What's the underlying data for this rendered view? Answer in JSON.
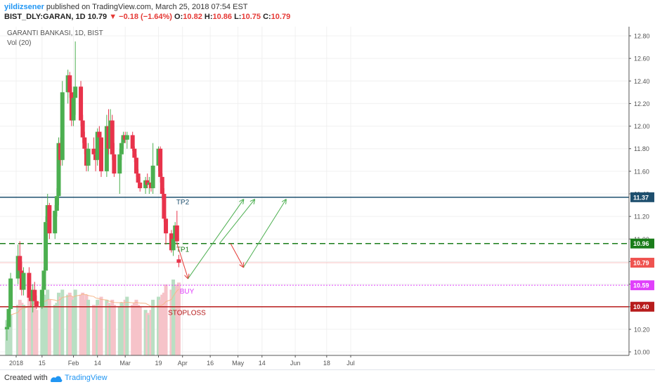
{
  "header": {
    "author": "yildizsener",
    "published": " published on TradingView.com, March 25, 2018 07:54 EST",
    "symbol": "BIST_DLY:GARAN, 1D",
    "last": "10.79",
    "change": "−0.18 (−1.64%)",
    "o_label": "O:",
    "o": "10.82",
    "h_label": "H:",
    "h": "10.86",
    "l_label": "L:",
    "l": "10.75",
    "c_label": "C:",
    "c": "10.79"
  },
  "legend": {
    "title": "GARANTI BANKASI, 1D, BIST",
    "volume": "Vol (20)"
  },
  "footer": {
    "created_with": "Created with",
    "brand": "TradingView"
  },
  "colors": {
    "up": "#4caf50",
    "down": "#e8334b",
    "vol_up": "#b9dfc3",
    "vol_down": "#f6c3c9",
    "grid": "#f0f0f0",
    "axis_text": "#555555"
  },
  "chart_data": {
    "type": "candlestick",
    "y_axis": {
      "min": 10.0,
      "max": 12.8,
      "ticks": [
        "10.00",
        "10.20",
        "10.40",
        "10.60",
        "10.80",
        "11.00",
        "11.20",
        "11.40",
        "11.60",
        "11.80",
        "12.00",
        "12.20",
        "12.40",
        "12.60",
        "12.80"
      ]
    },
    "x_ticks": [
      {
        "label": "2018",
        "date": "2018-01-01"
      },
      {
        "label": "15",
        "date": "2018-01-15"
      },
      {
        "label": "Feb",
        "date": "2018-02-01"
      },
      {
        "label": "14",
        "date": "2018-02-14"
      },
      {
        "label": "Mar",
        "date": "2018-03-01"
      },
      {
        "label": "19",
        "date": "2018-03-19"
      },
      {
        "label": "Apr",
        "date": "2018-04-01"
      },
      {
        "label": "16",
        "date": "2018-04-16"
      },
      {
        "label": "May",
        "date": "2018-05-01"
      },
      {
        "label": "14",
        "date": "2018-05-14"
      },
      {
        "label": "Jun",
        "date": "2018-06-01"
      },
      {
        "label": "18",
        "date": "2018-06-18"
      },
      {
        "label": "Jul",
        "date": "2018-07-01"
      }
    ],
    "candles": [
      {
        "d": "2017-12-27",
        "o": 10.2,
        "h": 10.25,
        "l": 10.1,
        "c": 10.22,
        "v": 0.35
      },
      {
        "d": "2017-12-28",
        "o": 10.22,
        "h": 10.4,
        "l": 10.2,
        "c": 10.38,
        "v": 0.45
      },
      {
        "d": "2017-12-29",
        "o": 10.38,
        "h": 10.7,
        "l": 10.35,
        "c": 10.65,
        "v": 0.4
      },
      {
        "d": "2018-01-02",
        "o": 10.65,
        "h": 10.95,
        "l": 10.6,
        "c": 10.85,
        "v": 0.5
      },
      {
        "d": "2018-01-03",
        "o": 10.85,
        "h": 10.98,
        "l": 10.7,
        "c": 10.72,
        "v": 0.55
      },
      {
        "d": "2018-01-04",
        "o": 10.72,
        "h": 10.8,
        "l": 10.5,
        "c": 10.55,
        "v": 0.52
      },
      {
        "d": "2018-01-05",
        "o": 10.55,
        "h": 10.75,
        "l": 10.5,
        "c": 10.7,
        "v": 0.5
      },
      {
        "d": "2018-01-08",
        "o": 10.7,
        "h": 10.75,
        "l": 10.45,
        "c": 10.48,
        "v": 0.58
      },
      {
        "d": "2018-01-09",
        "o": 10.48,
        "h": 10.55,
        "l": 10.4,
        "c": 10.45,
        "v": 0.6
      },
      {
        "d": "2018-01-10",
        "o": 10.45,
        "h": 10.6,
        "l": 10.35,
        "c": 10.55,
        "v": 0.55
      },
      {
        "d": "2018-01-11",
        "o": 10.55,
        "h": 10.62,
        "l": 10.42,
        "c": 10.45,
        "v": 0.5
      },
      {
        "d": "2018-01-12",
        "o": 10.45,
        "h": 10.5,
        "l": 10.38,
        "c": 10.4,
        "v": 0.45
      },
      {
        "d": "2018-01-15",
        "o": 10.4,
        "h": 10.58,
        "l": 10.38,
        "c": 10.55,
        "v": 0.52
      },
      {
        "d": "2018-01-16",
        "o": 10.55,
        "h": 10.75,
        "l": 10.5,
        "c": 10.72,
        "v": 0.55
      },
      {
        "d": "2018-01-17",
        "o": 10.72,
        "h": 11.2,
        "l": 10.7,
        "c": 11.15,
        "v": 0.6
      },
      {
        "d": "2018-01-18",
        "o": 11.15,
        "h": 11.4,
        "l": 11.05,
        "c": 11.3,
        "v": 0.65
      },
      {
        "d": "2018-01-19",
        "o": 11.3,
        "h": 11.32,
        "l": 11.0,
        "c": 11.05,
        "v": 0.55
      },
      {
        "d": "2018-01-22",
        "o": 11.05,
        "h": 11.3,
        "l": 11.0,
        "c": 11.25,
        "v": 0.5
      },
      {
        "d": "2018-01-23",
        "o": 11.25,
        "h": 11.45,
        "l": 11.2,
        "c": 11.38,
        "v": 0.52
      },
      {
        "d": "2018-01-24",
        "o": 11.38,
        "h": 11.9,
        "l": 11.3,
        "c": 11.85,
        "v": 0.62
      },
      {
        "d": "2018-01-25",
        "o": 11.85,
        "h": 11.9,
        "l": 11.65,
        "c": 11.7,
        "v": 0.58
      },
      {
        "d": "2018-01-26",
        "o": 11.7,
        "h": 12.4,
        "l": 11.65,
        "c": 12.3,
        "v": 0.65
      },
      {
        "d": "2018-01-29",
        "o": 12.3,
        "h": 12.5,
        "l": 12.2,
        "c": 12.45,
        "v": 0.6
      },
      {
        "d": "2018-01-30",
        "o": 12.45,
        "h": 12.48,
        "l": 12.25,
        "c": 12.3,
        "v": 0.62
      },
      {
        "d": "2018-01-31",
        "o": 12.3,
        "h": 12.35,
        "l": 12.0,
        "c": 12.05,
        "v": 0.58
      },
      {
        "d": "2018-02-01",
        "o": 12.05,
        "h": 12.3,
        "l": 12.0,
        "c": 12.25,
        "v": 0.55
      },
      {
        "d": "2018-02-02",
        "o": 12.25,
        "h": 12.75,
        "l": 12.1,
        "c": 12.35,
        "v": 0.65
      },
      {
        "d": "2018-02-05",
        "o": 12.35,
        "h": 12.4,
        "l": 12.0,
        "c": 12.05,
        "v": 0.6
      },
      {
        "d": "2018-02-06",
        "o": 12.05,
        "h": 12.1,
        "l": 11.85,
        "c": 11.9,
        "v": 0.62
      },
      {
        "d": "2018-02-07",
        "o": 11.9,
        "h": 11.95,
        "l": 11.75,
        "c": 11.8,
        "v": 0.55
      },
      {
        "d": "2018-02-08",
        "o": 11.8,
        "h": 11.85,
        "l": 11.6,
        "c": 11.65,
        "v": 0.6
      },
      {
        "d": "2018-02-09",
        "o": 11.65,
        "h": 11.85,
        "l": 11.6,
        "c": 11.8,
        "v": 0.55
      },
      {
        "d": "2018-02-12",
        "o": 11.8,
        "h": 11.9,
        "l": 11.7,
        "c": 11.75,
        "v": 0.5
      },
      {
        "d": "2018-02-13",
        "o": 11.75,
        "h": 11.8,
        "l": 11.6,
        "c": 11.7,
        "v": 0.48
      },
      {
        "d": "2018-02-14",
        "o": 11.7,
        "h": 11.98,
        "l": 11.65,
        "c": 11.95,
        "v": 0.55
      },
      {
        "d": "2018-02-15",
        "o": 11.95,
        "h": 12.0,
        "l": 11.8,
        "c": 11.9,
        "v": 0.5
      },
      {
        "d": "2018-02-16",
        "o": 11.9,
        "h": 11.95,
        "l": 11.55,
        "c": 11.6,
        "v": 0.58
      },
      {
        "d": "2018-02-19",
        "o": 11.6,
        "h": 12.1,
        "l": 11.55,
        "c": 12.0,
        "v": 0.55
      },
      {
        "d": "2018-02-20",
        "o": 12.0,
        "h": 12.15,
        "l": 11.75,
        "c": 11.8,
        "v": 0.52
      },
      {
        "d": "2018-02-21",
        "o": 11.8,
        "h": 12.15,
        "l": 11.75,
        "c": 12.05,
        "v": 0.5
      },
      {
        "d": "2018-02-22",
        "o": 12.05,
        "h": 12.1,
        "l": 11.7,
        "c": 11.75,
        "v": 0.55
      },
      {
        "d": "2018-02-23",
        "o": 11.75,
        "h": 11.85,
        "l": 11.55,
        "c": 11.58,
        "v": 0.5
      },
      {
        "d": "2018-02-26",
        "o": 11.58,
        "h": 11.8,
        "l": 11.4,
        "c": 11.75,
        "v": 0.48
      },
      {
        "d": "2018-02-27",
        "o": 11.75,
        "h": 11.9,
        "l": 11.7,
        "c": 11.85,
        "v": 0.52
      },
      {
        "d": "2018-02-28",
        "o": 11.85,
        "h": 11.95,
        "l": 11.8,
        "c": 11.92,
        "v": 0.5
      },
      {
        "d": "2018-03-01",
        "o": 11.92,
        "h": 11.95,
        "l": 11.85,
        "c": 11.88,
        "v": 0.55
      },
      {
        "d": "2018-03-02",
        "o": 11.88,
        "h": 11.95,
        "l": 11.8,
        "c": 11.92,
        "v": 0.58
      },
      {
        "d": "2018-03-05",
        "o": 11.92,
        "h": 11.95,
        "l": 11.78,
        "c": 11.8,
        "v": 0.5
      },
      {
        "d": "2018-03-06",
        "o": 11.8,
        "h": 11.82,
        "l": 11.68,
        "c": 11.72,
        "v": 0.52
      },
      {
        "d": "2018-03-07",
        "o": 11.72,
        "h": 11.75,
        "l": 11.55,
        "c": 11.58,
        "v": 0.55
      },
      {
        "d": "2018-03-08",
        "o": 11.58,
        "h": 11.62,
        "l": 11.45,
        "c": 11.5,
        "v": 0.5
      },
      {
        "d": "2018-03-09",
        "o": 11.5,
        "h": 11.55,
        "l": 11.42,
        "c": 11.45,
        "v": 0.48
      },
      {
        "d": "2018-03-12",
        "o": 11.45,
        "h": 11.55,
        "l": 11.4,
        "c": 11.52,
        "v": 0.45
      },
      {
        "d": "2018-03-13",
        "o": 11.52,
        "h": 11.58,
        "l": 11.45,
        "c": 11.48,
        "v": 0.42
      },
      {
        "d": "2018-03-14",
        "o": 11.48,
        "h": 11.55,
        "l": 11.4,
        "c": 11.5,
        "v": 0.4
      },
      {
        "d": "2018-03-15",
        "o": 11.5,
        "h": 11.55,
        "l": 11.42,
        "c": 11.45,
        "v": 0.45
      },
      {
        "d": "2018-03-16",
        "o": 11.45,
        "h": 11.85,
        "l": 11.4,
        "c": 11.65,
        "v": 0.55
      },
      {
        "d": "2018-03-19",
        "o": 11.65,
        "h": 11.82,
        "l": 11.6,
        "c": 11.8,
        "v": 0.58
      },
      {
        "d": "2018-03-20",
        "o": 11.8,
        "h": 11.82,
        "l": 11.5,
        "c": 11.55,
        "v": 0.55
      },
      {
        "d": "2018-03-21",
        "o": 11.55,
        "h": 11.58,
        "l": 11.35,
        "c": 11.4,
        "v": 0.6
      },
      {
        "d": "2018-03-22",
        "o": 11.4,
        "h": 11.45,
        "l": 11.15,
        "c": 11.18,
        "v": 0.62
      },
      {
        "d": "2018-03-23",
        "o": 11.18,
        "h": 11.2,
        "l": 10.95,
        "c": 11.05,
        "v": 0.7
      },
      {
        "d": "2018-03-26",
        "o": 11.05,
        "h": 11.08,
        "l": 10.88,
        "c": 10.9,
        "v": 0.65
      },
      {
        "d": "2018-03-27",
        "o": 10.9,
        "h": 11.05,
        "l": 10.85,
        "c": 11.0,
        "v": 0.75
      },
      {
        "d": "2018-03-28",
        "o": 11.0,
        "h": 11.15,
        "l": 10.95,
        "c": 11.12,
        "v": 0.68
      },
      {
        "d": "2018-03-29",
        "o": 11.12,
        "h": 11.25,
        "l": 10.95,
        "c": 10.98,
        "v": 0.7
      },
      {
        "d": "2018-03-30",
        "o": 10.82,
        "h": 10.86,
        "l": 10.75,
        "c": 10.79,
        "v": 0.72
      }
    ],
    "price_lines": [
      {
        "label": "TP2",
        "value": 11.37,
        "color": "#1e4f6e",
        "style": "solid"
      },
      {
        "label": "TP1",
        "value": 10.96,
        "color": "#1a7d1a",
        "style": "dashed"
      },
      {
        "label": "BUY",
        "value": 10.59,
        "color": "#e040fb",
        "style": "dotted"
      },
      {
        "label": "STOPLOSS",
        "value": 10.4,
        "color": "#b71c1c",
        "style": "solid"
      }
    ],
    "last_price": {
      "value": 10.79,
      "label": "10.79",
      "color": "#ef5350"
    },
    "arrows": [
      {
        "color": "#e53935",
        "from": {
          "d": "2018-03-29",
          "p": 10.96
        },
        "to": {
          "d": "2018-04-04",
          "p": 10.65
        }
      },
      {
        "color": "#4caf50",
        "from": {
          "d": "2018-04-04",
          "p": 10.65
        },
        "to": {
          "d": "2018-05-04",
          "p": 11.35
        }
      },
      {
        "color": "#4caf50",
        "from": {
          "d": "2018-04-21",
          "p": 10.96
        },
        "to": {
          "d": "2018-05-10",
          "p": 11.35
        }
      },
      {
        "color": "#e53935",
        "from": {
          "d": "2018-04-27",
          "p": 10.96
        },
        "to": {
          "d": "2018-05-04",
          "p": 10.75
        }
      },
      {
        "color": "#4caf50",
        "from": {
          "d": "2018-05-04",
          "p": 10.75
        },
        "to": {
          "d": "2018-05-27",
          "p": 11.35
        }
      }
    ]
  }
}
